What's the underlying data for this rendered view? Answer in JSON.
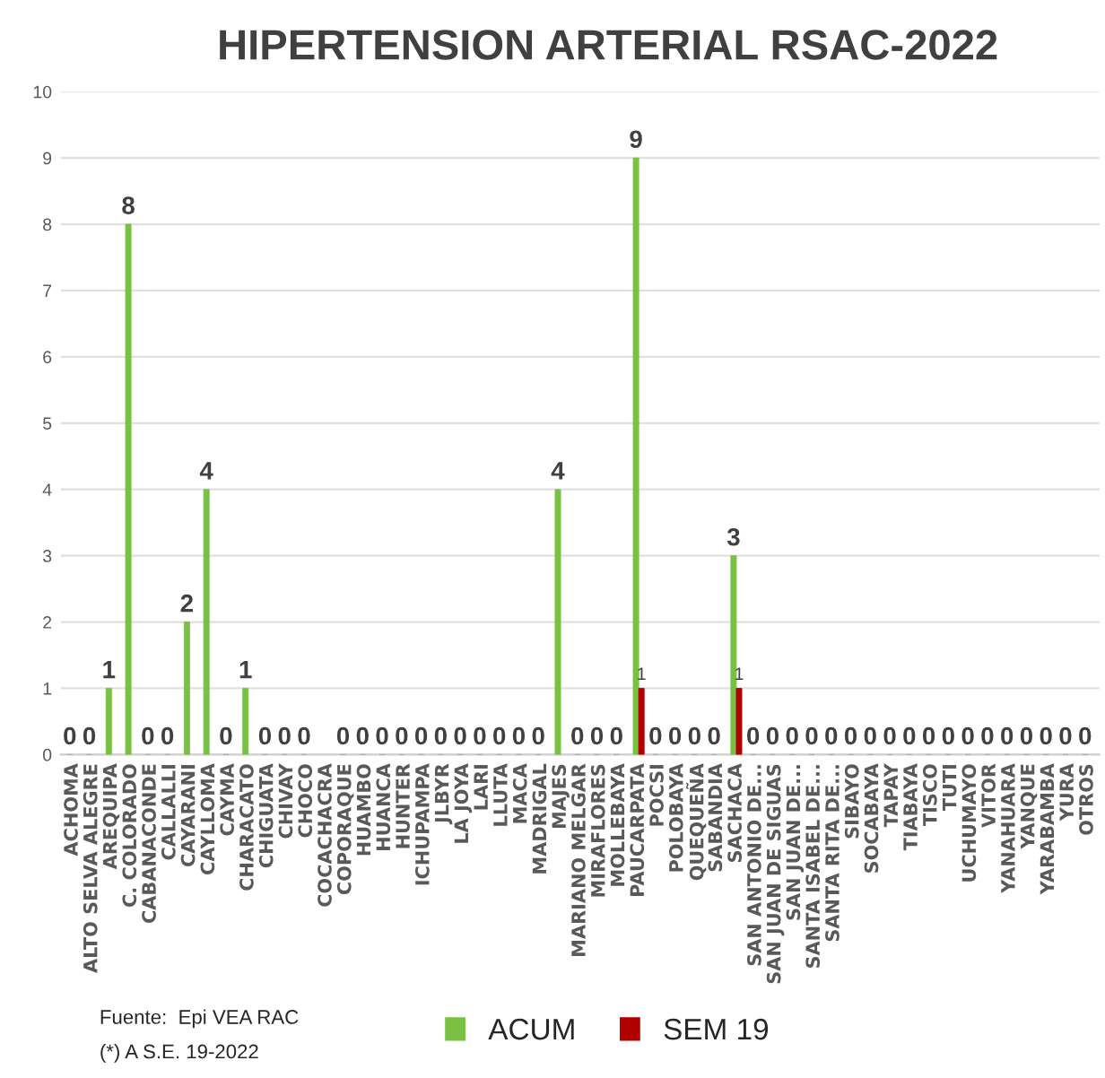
{
  "chart_data": {
    "type": "bar",
    "title": "HIPERTENSION ARTERIAL RSAC-2022",
    "categories": [
      "ACHOMA",
      "ALTO SELVA ALEGRE",
      "AREQUIPA",
      "C. COLORADO",
      "CABANACONDE",
      "CALLALLI",
      "CAYARANI",
      "CAYLLOMA",
      "CAYMA",
      "CHARACATO",
      "CHIGUATA",
      "CHIVAY",
      "CHOCO",
      "COCACHACRA",
      "COPORAQUE",
      "HUAMBO",
      "HUANCA",
      "HUNTER",
      "ICHUPAMPA",
      "JLBYR",
      "LA JOYA",
      "LARI",
      "LLUTA",
      "MACA",
      "MADRIGAL",
      "MAJES",
      "MARIANO MELGAR",
      "MIRAFLORES",
      "MOLLEBAYA",
      "PAUCARPATA",
      "POCSI",
      "POLOBAYA",
      "QUEQUEÑA",
      "SABANDIA",
      "SACHACA",
      "SAN ANTONIO DE...",
      "SAN JUAN DE SIGUAS",
      "SAN JUAN DE...",
      "SANTA ISABEL DE...",
      "SANTA RITA DE...",
      "SIBAYO",
      "SOCABAYA",
      "TAPAY",
      "TIABAYA",
      "TISCO",
      "TUTI",
      "UCHUMAYO",
      "VITOR",
      "YANAHUARA",
      "YANQUE",
      "YARABAMBA",
      "YURA",
      "OTROS"
    ],
    "series": [
      {
        "name": "ACUM",
        "color": "#7ac143",
        "values": [
          0,
          0,
          1,
          8,
          0,
          0,
          2,
          4,
          0,
          1,
          0,
          0,
          0,
          null,
          0,
          0,
          0,
          0,
          0,
          0,
          0,
          0,
          0,
          0,
          0,
          4,
          0,
          0,
          0,
          9,
          0,
          0,
          0,
          0,
          3,
          0,
          0,
          0,
          0,
          0,
          0,
          0,
          0,
          0,
          0,
          0,
          0,
          0,
          0,
          0,
          0,
          0,
          0
        ],
        "value_labels": [
          "0",
          "0",
          "1",
          "8",
          "0",
          "0",
          "2",
          "4",
          "0",
          "1",
          "0",
          "0",
          "0",
          null,
          "0",
          "0",
          "0",
          "0",
          "0",
          "0",
          "0",
          "0",
          "0",
          "0",
          "0",
          "4",
          "0",
          "0",
          "0",
          "9",
          "0",
          "0",
          "0",
          "0",
          "3",
          "0",
          "0",
          "0",
          "0",
          "0",
          "0",
          "0",
          "0",
          "0",
          "0",
          "0",
          "0",
          "0",
          "0",
          "0",
          "0",
          "0",
          "0"
        ]
      },
      {
        "name": "SEM 19",
        "color": "#b00000",
        "values": [
          null,
          null,
          null,
          null,
          null,
          null,
          null,
          null,
          null,
          null,
          null,
          null,
          null,
          null,
          null,
          null,
          null,
          null,
          null,
          null,
          null,
          null,
          null,
          null,
          null,
          null,
          null,
          null,
          null,
          1,
          null,
          null,
          null,
          null,
          1,
          null,
          null,
          null,
          null,
          null,
          null,
          null,
          null,
          null,
          null,
          null,
          null,
          null,
          null,
          null,
          null,
          null,
          null
        ],
        "value_labels": [
          null,
          null,
          null,
          null,
          null,
          null,
          null,
          null,
          null,
          null,
          null,
          null,
          null,
          null,
          null,
          null,
          null,
          null,
          null,
          null,
          null,
          null,
          null,
          null,
          null,
          null,
          null,
          null,
          null,
          "1",
          null,
          null,
          null,
          null,
          "1",
          null,
          null,
          null,
          null,
          null,
          null,
          null,
          null,
          null,
          null,
          null,
          null,
          null,
          null,
          null,
          null,
          null,
          null
        ]
      }
    ],
    "ylim": [
      0,
      10
    ],
    "yticks": [
      0,
      1,
      2,
      3,
      4,
      5,
      6,
      7,
      8,
      9,
      10
    ],
    "grid": "y",
    "legend": "bottom",
    "annotations": [
      "Fuente:  Epi VEA RAC",
      "(*) A S.E. 19-2022"
    ]
  }
}
